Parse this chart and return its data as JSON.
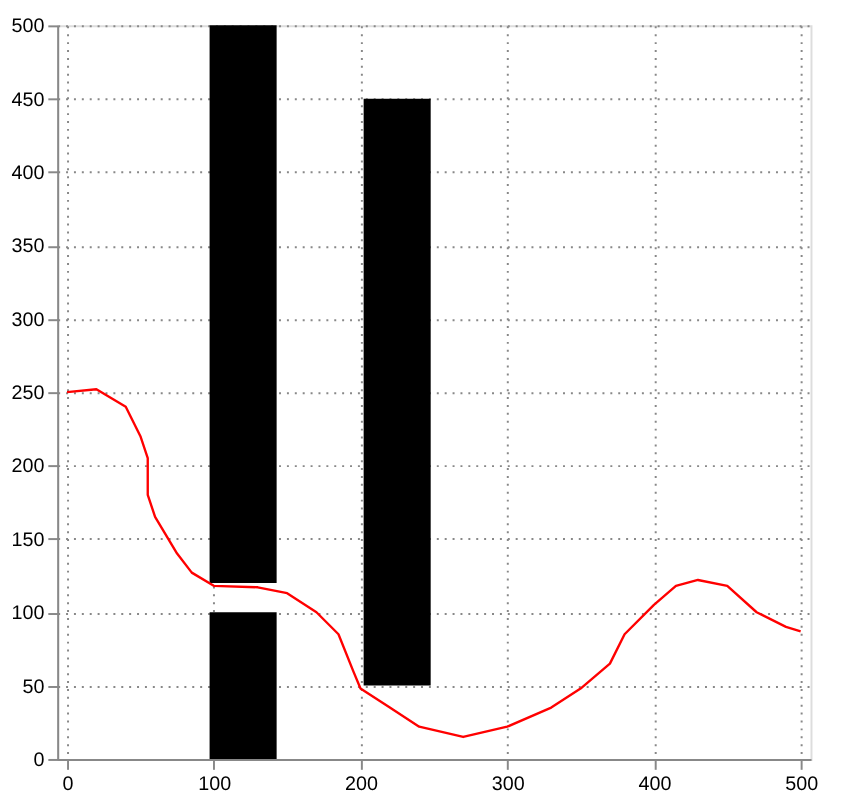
{
  "chart_data": {
    "type": "bar",
    "series": [
      {
        "color": "#000000",
        "x": [
          120,
          225
        ],
        "base": [
          120,
          50
        ],
        "values": [
          380,
          400
        ]
      },
      {
        "color": "#000000",
        "x": [
          120
        ],
        "base": [
          0
        ],
        "values": [
          100
        ]
      },
      {
        "type": "line",
        "color": "#ff0000",
        "x": [
          0,
          20,
          40,
          50,
          55,
          55,
          60,
          75,
          85,
          100,
          130,
          150,
          170,
          185,
          195,
          200,
          220,
          240,
          270,
          300,
          330,
          350,
          370,
          380,
          400,
          415,
          430,
          450,
          470,
          490,
          500
        ],
        "values": [
          250,
          252,
          240,
          220,
          205,
          180,
          165,
          140,
          127,
          118,
          117,
          113,
          100,
          85,
          60,
          48,
          35,
          22,
          15,
          22,
          35,
          48,
          65,
          85,
          105,
          118,
          122,
          118,
          100,
          90,
          87
        ]
      }
    ],
    "xlim": [
      0,
      500
    ],
    "ylim": [
      0,
      500
    ],
    "xticks": [
      0,
      100,
      200,
      300,
      400,
      500
    ],
    "yticks": [
      0,
      50,
      100,
      150,
      200,
      250,
      300,
      350,
      400,
      450,
      500
    ],
    "grid": true,
    "line_style": "solid",
    "marker": "none"
  }
}
